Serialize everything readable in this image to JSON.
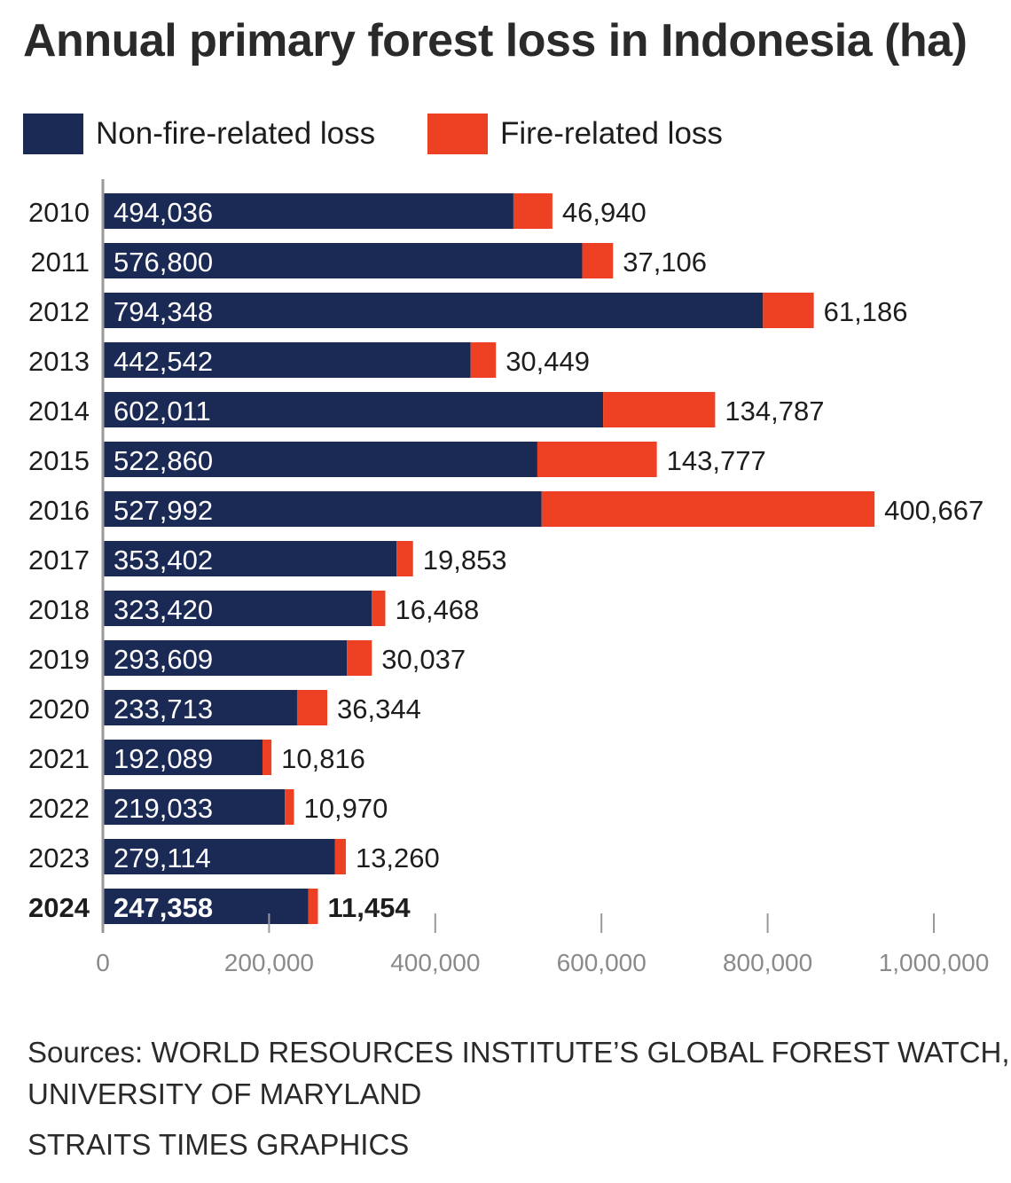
{
  "colors": {
    "non_fire": "#1b2a55",
    "fire": "#ee4023",
    "axis": "#999999",
    "text": "#1d1d1d"
  },
  "legend": [
    {
      "label": "Non-fire-related loss",
      "color": "#1b2a55"
    },
    {
      "label": "Fire-related loss",
      "color": "#ee4023"
    }
  ],
  "chart_data": {
    "type": "bar",
    "orientation": "horizontal",
    "stacked": true,
    "title": "Annual primary forest loss in Indonesia (ha)",
    "categories": [
      "2010",
      "2011",
      "2012",
      "2013",
      "2014",
      "2015",
      "2016",
      "2017",
      "2018",
      "2019",
      "2020",
      "2021",
      "2022",
      "2023",
      "2024"
    ],
    "highlight_category": "2024",
    "series": [
      {
        "name": "Non-fire-related loss",
        "values": [
          494036,
          576800,
          794348,
          442542,
          602011,
          522860,
          527992,
          353402,
          323420,
          293609,
          233713,
          192089,
          219033,
          279114,
          247358
        ],
        "labels": [
          "494,036",
          "576,800",
          "794,348",
          "442,542",
          "602,011",
          "522,860",
          "527,992",
          "353,402",
          "323,420",
          "293,609",
          "233,713",
          "192,089",
          "219,033",
          "279,114",
          "247,358"
        ]
      },
      {
        "name": "Fire-related loss",
        "values": [
          46940,
          37106,
          61186,
          30449,
          134787,
          143777,
          400667,
          19853,
          16468,
          30037,
          36344,
          10816,
          10970,
          13260,
          11454
        ],
        "labels": [
          "46,940",
          "37,106",
          "61,186",
          "30,449",
          "134,787",
          "143,777",
          "400,667",
          "19,853",
          "16,468",
          "30,037",
          "36,344",
          "10,816",
          "10,970",
          "13,260",
          "11,454"
        ]
      }
    ],
    "xlim": [
      0,
      1000000
    ],
    "xticks": [
      0,
      200000,
      400000,
      600000,
      800000,
      1000000
    ],
    "xtick_labels": [
      "0",
      "200,000",
      "400,000",
      "600,000",
      "800,000",
      "1,000,000"
    ],
    "grid": false
  },
  "sources": {
    "line1": "Sources: WORLD RESOURCES INSTITUTE’S GLOBAL FOREST WATCH,",
    "line2": "UNIVERSITY OF MARYLAND",
    "credit": "STRAITS TIMES GRAPHICS"
  }
}
